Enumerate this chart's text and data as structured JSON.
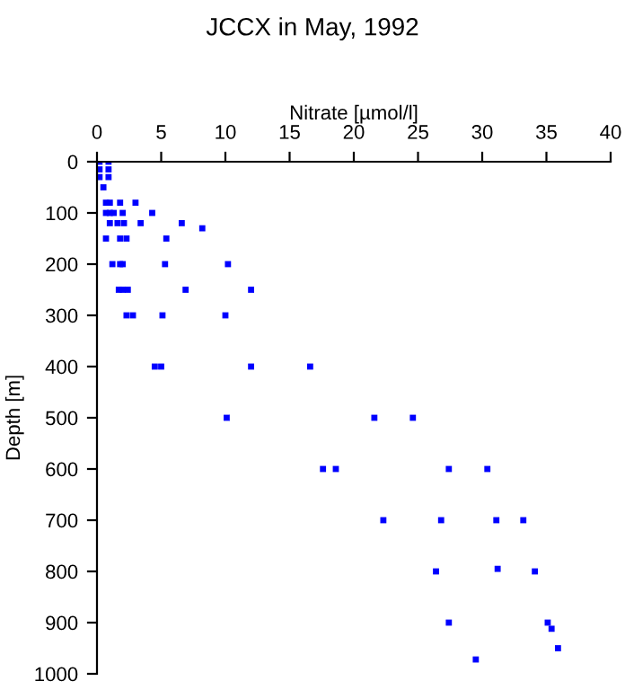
{
  "chart_data": {
    "type": "scatter",
    "title": "JCCX in May, 1992",
    "xlabel": "Nitrate [µmol/l]",
    "ylabel": "Depth [m]",
    "series": [
      {
        "color": "#0000ff",
        "x": [
          0.2,
          0.9,
          0.2,
          0.9,
          0.2,
          0.9,
          0.5,
          0.7,
          1.0,
          1.8,
          3.0,
          0.7,
          1.0,
          1.3,
          2.0,
          4.3,
          1.0,
          1.6,
          2.1,
          3.4,
          6.6,
          8.2,
          0.7,
          1.8,
          2.3,
          5.4,
          1.2,
          1.8,
          2.0,
          5.3,
          10.2,
          1.7,
          2.0,
          2.4,
          6.9,
          12.0,
          2.3,
          2.8,
          5.1,
          10.0,
          4.5,
          5.0,
          12.0,
          16.6,
          10.1,
          21.6,
          24.6,
          17.6,
          18.6,
          27.4,
          30.4,
          22.3,
          26.8,
          31.1,
          33.2,
          26.4,
          31.2,
          34.1,
          27.4,
          35.1,
          35.4,
          35.9,
          29.5
        ],
        "values": [
          0,
          0,
          15,
          15,
          30,
          30,
          50,
          80,
          80,
          80,
          80,
          100,
          100,
          100,
          100,
          100,
          120,
          120,
          120,
          120,
          120,
          130,
          150,
          150,
          150,
          150,
          200,
          200,
          200,
          200,
          200,
          250,
          250,
          250,
          250,
          250,
          300,
          300,
          300,
          300,
          400,
          400,
          400,
          400,
          500,
          500,
          500,
          600,
          600,
          600,
          600,
          700,
          700,
          700,
          700,
          800,
          795,
          800,
          900,
          900,
          912,
          950,
          972
        ]
      }
    ],
    "xlim": [
      0,
      40
    ],
    "xticks": [
      0,
      5,
      10,
      15,
      20,
      25,
      30,
      35,
      40
    ],
    "ylim": [
      1000,
      0
    ],
    "yticks": [
      0,
      100,
      200,
      300,
      400,
      500,
      600,
      700,
      800,
      900,
      1000
    ],
    "grid": false,
    "marker": "square",
    "legend": false
  }
}
